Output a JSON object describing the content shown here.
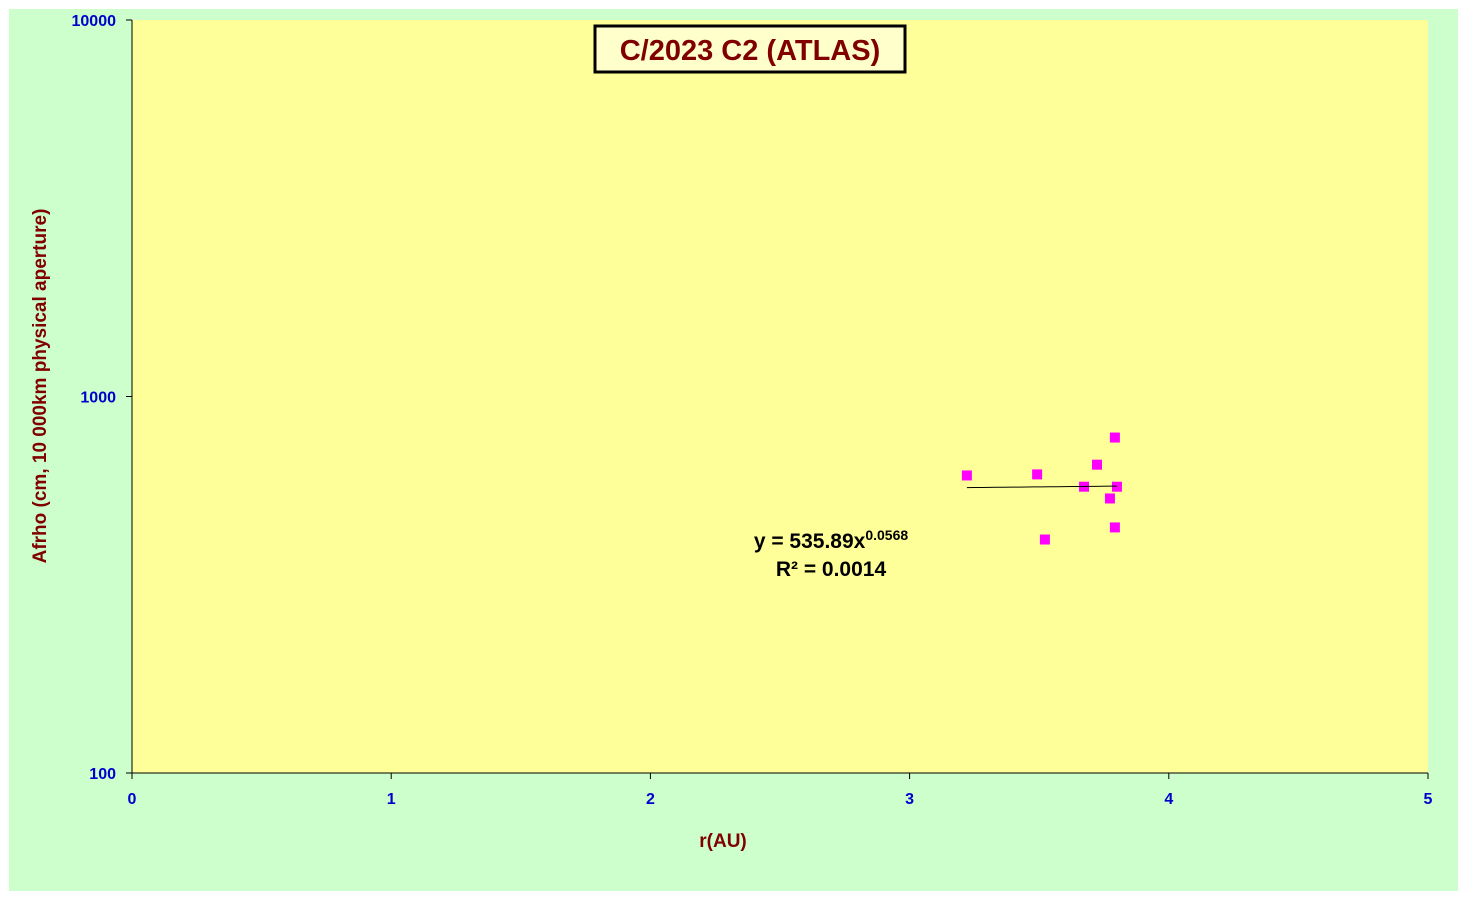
{
  "chart_data": {
    "type": "scatter",
    "title": "C/2023 C2 (ATLAS)",
    "x_label": "r(AU)",
    "y_label": "Afrho (cm, 10 000km physical  aperture)",
    "x": [
      3.221,
      3.492,
      3.522,
      3.673,
      3.723,
      3.773,
      3.792,
      3.792,
      3.8
    ],
    "series": [
      {
        "color": "#ff00ff",
        "values": [
          617,
          621,
          417,
          576,
          659,
          536,
          778,
          449,
          576
        ]
      }
    ],
    "xlim": [
      0,
      5
    ],
    "xticks": [
      0,
      1,
      2,
      3,
      4,
      5
    ],
    "ylim": [
      100,
      10000
    ],
    "yticks": [
      100,
      1000,
      10000
    ],
    "ylog": true,
    "trendline": {
      "type": "power",
      "a": 535.89,
      "b": 0.0568,
      "color": "#000000",
      "equation": "y = 535.89x",
      "exponent": "0.0568",
      "r_squared": "R² = 0.0014"
    }
  }
}
